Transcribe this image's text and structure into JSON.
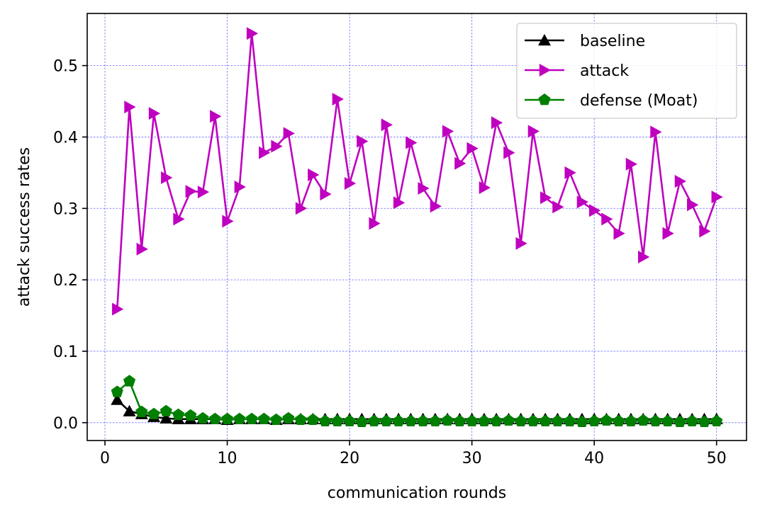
{
  "chart_data": {
    "type": "line",
    "title": "",
    "xlabel": "communication rounds",
    "ylabel": "attack success rates",
    "xlim": [
      -1.45,
      52.45
    ],
    "ylim": [
      -0.025,
      0.573
    ],
    "xticks": [
      0,
      10,
      20,
      30,
      40,
      50
    ],
    "yticks": [
      0.0,
      0.1,
      0.2,
      0.3,
      0.4,
      0.5
    ],
    "xtick_labels": [
      "0",
      "10",
      "20",
      "30",
      "40",
      "50"
    ],
    "ytick_labels": [
      "0.0",
      "0.1",
      "0.2",
      "0.3",
      "0.4",
      "0.5"
    ],
    "grid": true,
    "legend_position": "top-right",
    "x": [
      1,
      2,
      3,
      4,
      5,
      6,
      7,
      8,
      9,
      10,
      11,
      12,
      13,
      14,
      15,
      16,
      17,
      18,
      19,
      20,
      21,
      22,
      23,
      24,
      25,
      26,
      27,
      28,
      29,
      30,
      31,
      32,
      33,
      34,
      35,
      36,
      37,
      38,
      39,
      40,
      41,
      42,
      43,
      44,
      45,
      46,
      47,
      48,
      49,
      50
    ],
    "series": [
      {
        "name": "baseline",
        "color": "#000000",
        "marker": "triangle-up",
        "values": [
          0.032,
          0.016,
          0.012,
          0.008,
          0.006,
          0.005,
          0.005,
          0.005,
          0.005,
          0.004,
          0.005,
          0.005,
          0.005,
          0.004,
          0.005,
          0.005,
          0.005,
          0.005,
          0.005,
          0.005,
          0.005,
          0.005,
          0.005,
          0.005,
          0.005,
          0.005,
          0.005,
          0.005,
          0.005,
          0.005,
          0.005,
          0.005,
          0.005,
          0.005,
          0.005,
          0.005,
          0.005,
          0.005,
          0.005,
          0.005,
          0.005,
          0.005,
          0.005,
          0.005,
          0.005,
          0.005,
          0.005,
          0.005,
          0.005,
          0.005
        ]
      },
      {
        "name": "attack",
        "color": "#bf00bf",
        "marker": "triangle-right",
        "values": [
          0.159,
          0.442,
          0.243,
          0.433,
          0.343,
          0.285,
          0.324,
          0.323,
          0.429,
          0.282,
          0.33,
          0.545,
          0.378,
          0.387,
          0.405,
          0.3,
          0.347,
          0.32,
          0.453,
          0.335,
          0.394,
          0.279,
          0.417,
          0.308,
          0.392,
          0.328,
          0.303,
          0.408,
          0.363,
          0.384,
          0.329,
          0.42,
          0.378,
          0.251,
          0.408,
          0.315,
          0.302,
          0.35,
          0.309,
          0.297,
          0.285,
          0.265,
          0.362,
          0.232,
          0.407,
          0.265,
          0.338,
          0.305,
          0.268,
          0.316
        ]
      },
      {
        "name": "defense (Moat)",
        "color": "#007f00",
        "marker": "pentagon",
        "values": [
          0.043,
          0.058,
          0.015,
          0.012,
          0.016,
          0.011,
          0.01,
          0.006,
          0.005,
          0.005,
          0.005,
          0.005,
          0.005,
          0.004,
          0.006,
          0.004,
          0.004,
          0.002,
          0.002,
          0.002,
          0.001,
          0.002,
          0.002,
          0.002,
          0.002,
          0.002,
          0.002,
          0.003,
          0.002,
          0.002,
          0.002,
          0.002,
          0.003,
          0.002,
          0.002,
          0.002,
          0.002,
          0.002,
          0.001,
          0.002,
          0.003,
          0.002,
          0.002,
          0.003,
          0.002,
          0.002,
          0.001,
          0.002,
          0.001,
          0.002
        ]
      }
    ]
  }
}
